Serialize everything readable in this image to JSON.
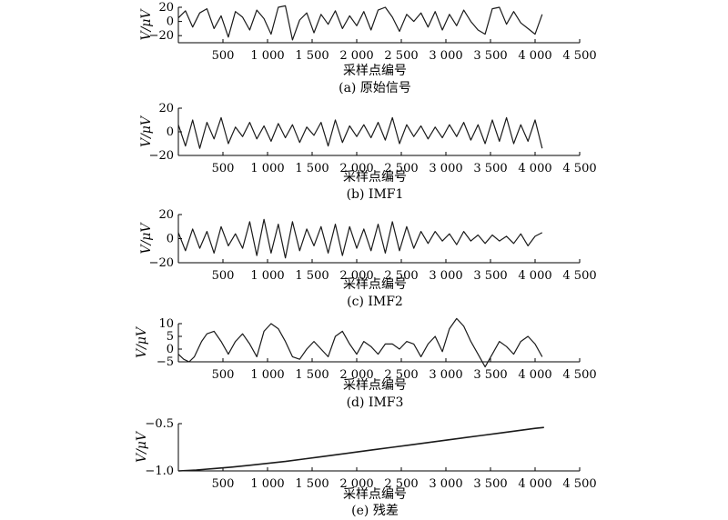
{
  "chart_data": [
    {
      "type": "line",
      "caption": "(a) 原始信号",
      "ylabel": "V/μV",
      "xlabel": "采样点编号",
      "xlim": [
        0,
        4500
      ],
      "ylim": [
        -30,
        20
      ],
      "xticks": [
        "500",
        "1 000",
        "1 500",
        "2 000",
        "2 500",
        "3 000",
        "3 500",
        "4 000",
        "4 500"
      ],
      "xtick_values": [
        500,
        1000,
        1500,
        2000,
        2500,
        3000,
        3500,
        4000,
        4500
      ],
      "yticks": [
        "20",
        "0",
        "−20"
      ],
      "ytick_values": [
        20,
        0,
        -20
      ],
      "series": [
        {
          "x": [
            0,
            80,
            160,
            240,
            320,
            400,
            480,
            560,
            640,
            720,
            800,
            880,
            960,
            1040,
            1120,
            1200,
            1280,
            1360,
            1440,
            1520,
            1600,
            1680,
            1760,
            1840,
            1920,
            2000,
            2080,
            2160,
            2240,
            2320,
            2400,
            2480,
            2560,
            2640,
            2720,
            2800,
            2880,
            2960,
            3040,
            3120,
            3200,
            3280,
            3360,
            3440,
            3520,
            3600,
            3680,
            3760,
            3840,
            3920,
            4000,
            4080
          ],
          "y": [
            5,
            15,
            -8,
            12,
            18,
            -10,
            8,
            -22,
            14,
            6,
            -12,
            16,
            4,
            -18,
            20,
            22,
            -26,
            2,
            12,
            -16,
            10,
            -4,
            15,
            -10,
            8,
            -6,
            14,
            -12,
            16,
            20,
            6,
            -14,
            10,
            0,
            12,
            -8,
            14,
            -12,
            10,
            -6,
            16,
            0,
            -12,
            -18,
            18,
            20,
            -4,
            14,
            -2,
            -10,
            -18,
            10
          ]
        }
      ]
    },
    {
      "type": "line",
      "caption": "(b) IMF1",
      "ylabel": "V/μV",
      "xlabel": "采样点编号",
      "xlim": [
        0,
        4500
      ],
      "ylim": [
        -20,
        20
      ],
      "xticks": [
        "500",
        "1 000",
        "1 500",
        "2 000",
        "2 500",
        "3 000",
        "3 500",
        "4 000",
        "4 500"
      ],
      "xtick_values": [
        500,
        1000,
        1500,
        2000,
        2500,
        3000,
        3500,
        4000,
        4500
      ],
      "yticks": [
        "20",
        "0",
        "−20"
      ],
      "ytick_values": [
        20,
        0,
        -20
      ],
      "series": [
        {
          "x": [
            0,
            80,
            160,
            240,
            320,
            400,
            480,
            560,
            640,
            720,
            800,
            880,
            960,
            1040,
            1120,
            1200,
            1280,
            1360,
            1440,
            1520,
            1600,
            1680,
            1760,
            1840,
            1920,
            2000,
            2080,
            2160,
            2240,
            2320,
            2400,
            2480,
            2560,
            2640,
            2720,
            2800,
            2880,
            2960,
            3040,
            3120,
            3200,
            3280,
            3360,
            3440,
            3520,
            3600,
            3680,
            3760,
            3840,
            3920,
            4000,
            4080
          ],
          "y": [
            6,
            -12,
            10,
            -14,
            8,
            -6,
            12,
            -10,
            4,
            -4,
            8,
            -6,
            5,
            -8,
            7,
            -5,
            6,
            -9,
            4,
            -3,
            8,
            -12,
            10,
            -9,
            5,
            -4,
            6,
            -5,
            8,
            -7,
            12,
            -10,
            6,
            -4,
            5,
            -6,
            4,
            -5,
            6,
            -4,
            8,
            -7,
            6,
            -10,
            10,
            -8,
            12,
            -10,
            6,
            -8,
            10,
            -14
          ]
        }
      ]
    },
    {
      "type": "line",
      "caption": "(c) IMF2",
      "ylabel": "V/μV",
      "xlabel": "采样点编号",
      "xlim": [
        0,
        4500
      ],
      "ylim": [
        -20,
        20
      ],
      "xticks": [
        "500",
        "1 000",
        "1 500",
        "2 000",
        "2 500",
        "3 000",
        "3 500",
        "4 000",
        "4 500"
      ],
      "xtick_values": [
        500,
        1000,
        1500,
        2000,
        2500,
        3000,
        3500,
        4000,
        4500
      ],
      "yticks": [
        "20",
        "0",
        "−20"
      ],
      "ytick_values": [
        20,
        0,
        -20
      ],
      "series": [
        {
          "x": [
            0,
            80,
            160,
            240,
            320,
            400,
            480,
            560,
            640,
            720,
            800,
            880,
            960,
            1040,
            1120,
            1200,
            1280,
            1360,
            1440,
            1520,
            1600,
            1680,
            1760,
            1840,
            1920,
            2000,
            2080,
            2160,
            2240,
            2320,
            2400,
            2480,
            2560,
            2640,
            2720,
            2800,
            2880,
            2960,
            3040,
            3120,
            3200,
            3280,
            3360,
            3440,
            3520,
            3600,
            3680,
            3760,
            3840,
            3920,
            4000,
            4080
          ],
          "y": [
            5,
            -10,
            8,
            -8,
            6,
            -12,
            10,
            -6,
            4,
            -8,
            14,
            -14,
            16,
            -12,
            12,
            -16,
            14,
            -10,
            8,
            -6,
            10,
            -12,
            12,
            -14,
            10,
            -8,
            8,
            -10,
            12,
            -12,
            14,
            -10,
            10,
            -8,
            6,
            -4,
            6,
            -2,
            4,
            -5,
            6,
            -2,
            3,
            -4,
            3,
            -2,
            2,
            -4,
            4,
            -6,
            2,
            5
          ]
        }
      ]
    },
    {
      "type": "line",
      "caption": "(d) IMF3",
      "ylabel": "V/μV",
      "xlabel": "采样点编号",
      "xlim": [
        0,
        4500
      ],
      "ylim": [
        -5,
        10
      ],
      "xticks": [
        "500",
        "1 000",
        "1 500",
        "2 000",
        "2 500",
        "3 000",
        "3 500",
        "4 000",
        "4 500"
      ],
      "xtick_values": [
        500,
        1000,
        1500,
        2000,
        2500,
        3000,
        3500,
        4000,
        4500
      ],
      "yticks": [
        "10",
        "5",
        "0",
        "−5"
      ],
      "ytick_values": [
        10,
        5,
        0,
        -5
      ],
      "series": [
        {
          "x": [
            0,
            60,
            120,
            180,
            260,
            320,
            400,
            480,
            560,
            640,
            720,
            800,
            880,
            960,
            1040,
            1120,
            1200,
            1280,
            1360,
            1440,
            1520,
            1600,
            1680,
            1760,
            1840,
            1920,
            2000,
            2080,
            2160,
            2240,
            2320,
            2400,
            2480,
            2560,
            2640,
            2720,
            2800,
            2880,
            2960,
            3040,
            3120,
            3200,
            3280,
            3360,
            3440,
            3520,
            3600,
            3680,
            3760,
            3840,
            3920,
            4000,
            4080
          ],
          "y": [
            -2,
            -4,
            -5,
            -3,
            3,
            6,
            7,
            3,
            -2,
            3,
            6,
            2,
            -3,
            7,
            10,
            8,
            3,
            -3,
            -4,
            0,
            3,
            0,
            -3,
            5,
            7,
            2,
            -2,
            3,
            1,
            -2,
            2,
            2,
            0,
            3,
            2,
            -3,
            2,
            5,
            -1,
            8,
            12,
            9,
            3,
            -2,
            -7,
            -2,
            3,
            1,
            -2,
            3,
            5,
            2,
            -3
          ]
        }
      ]
    },
    {
      "type": "line",
      "caption": "(e) 残差",
      "ylabel": "V/μV",
      "xlabel": "采样点编号",
      "xlim": [
        0,
        4500
      ],
      "ylim": [
        -1.0,
        -0.5
      ],
      "xticks": [
        "500",
        "1 000",
        "1 500",
        "2 000",
        "2 500",
        "3 000",
        "3 500",
        "4 000",
        "4 500"
      ],
      "xtick_values": [
        500,
        1000,
        1500,
        2000,
        2500,
        3000,
        3500,
        4000,
        4500
      ],
      "yticks": [
        "−0.5",
        "−1.0"
      ],
      "ytick_values": [
        -0.5,
        -1.0
      ],
      "series": [
        {
          "x": [
            0,
            200,
            400,
            600,
            800,
            1000,
            1200,
            1400,
            1600,
            1800,
            2000,
            2200,
            2400,
            2600,
            2800,
            3000,
            3200,
            3400,
            3600,
            3800,
            4000,
            4100
          ],
          "y": [
            -1.0,
            -0.99,
            -0.975,
            -0.96,
            -0.94,
            -0.92,
            -0.9,
            -0.875,
            -0.85,
            -0.825,
            -0.8,
            -0.775,
            -0.75,
            -0.725,
            -0.7,
            -0.675,
            -0.65,
            -0.625,
            -0.6,
            -0.575,
            -0.55,
            -0.54
          ]
        }
      ]
    }
  ]
}
